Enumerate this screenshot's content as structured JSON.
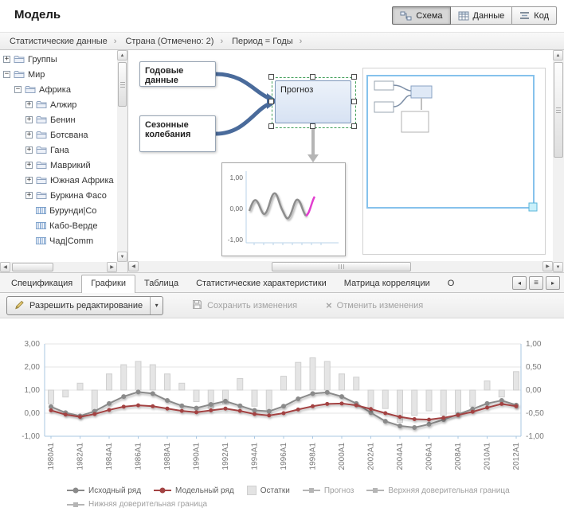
{
  "header": {
    "title": "Модель",
    "views": [
      {
        "label": "Схема",
        "active": true
      },
      {
        "label": "Данные",
        "active": false
      },
      {
        "label": "Код",
        "active": false
      }
    ]
  },
  "breadcrumb": {
    "items": [
      "Статистические данные",
      "Страна (Отмечено: 2)",
      "Период = Годы"
    ]
  },
  "icons": {
    "chevron_right": "›",
    "dropdown_arrow": "▾",
    "scroll_up": "▲",
    "scroll_down": "▼",
    "scroll_left": "◀",
    "scroll_right": "▶",
    "nav_left": "◂",
    "nav_right": "▸",
    "nav_menu": "≡",
    "expand": "+",
    "collapse": "−",
    "cancel_x": "×"
  },
  "tree": {
    "items": [
      {
        "label": "Группы",
        "depth": 0,
        "icon": "folder",
        "toggle": "+"
      },
      {
        "label": "Мир",
        "depth": 0,
        "icon": "folder",
        "toggle": "-"
      },
      {
        "label": "Африка",
        "depth": 1,
        "icon": "folder",
        "toggle": "-"
      },
      {
        "label": "Алжир",
        "depth": 2,
        "icon": "folder",
        "toggle": "+"
      },
      {
        "label": "Бенин",
        "depth": 2,
        "icon": "folder",
        "toggle": "+"
      },
      {
        "label": "Ботсвана",
        "depth": 2,
        "icon": "folder",
        "toggle": "+"
      },
      {
        "label": "Гана",
        "depth": 2,
        "icon": "folder",
        "toggle": "+"
      },
      {
        "label": "Маврикий",
        "depth": 2,
        "icon": "folder",
        "toggle": "+"
      },
      {
        "label": "Южная Африка",
        "depth": 2,
        "icon": "folder",
        "toggle": "+"
      },
      {
        "label": "Буркина Фасо",
        "depth": 2,
        "icon": "folder",
        "toggle": "+"
      },
      {
        "label": "Бурунди|Co",
        "depth": 2,
        "icon": "series",
        "toggle": null
      },
      {
        "label": "Кабо-Верде",
        "depth": 2,
        "icon": "series",
        "toggle": null
      },
      {
        "label": "Чад|Comm",
        "depth": 2,
        "icon": "series",
        "toggle": null
      }
    ]
  },
  "diagram": {
    "nodes": [
      {
        "label": "Годовые данные"
      },
      {
        "label": "Сезонные колебания"
      },
      {
        "label": "Прогноз",
        "selected": true
      }
    ],
    "thumbnail": {
      "ylabels": [
        "1,00",
        "0,00",
        "-1,00"
      ]
    }
  },
  "tabs": {
    "items": [
      {
        "label": "Спецификация",
        "active": false
      },
      {
        "label": "Графики",
        "active": true
      },
      {
        "label": "Таблица",
        "active": false
      },
      {
        "label": "Статистические характеристики",
        "active": false
      },
      {
        "label": "Матрица корреляции",
        "active": false
      },
      {
        "label": "О",
        "active": false
      }
    ]
  },
  "toolbar": {
    "edit_label": "Разрешить редактирование",
    "save_label": "Сохранить изменения",
    "cancel_label": "Отменить изменения"
  },
  "chart_data": {
    "type": "line+bar",
    "grid": true,
    "legend_position": "bottom",
    "x": [
      "1980A1",
      "1981A1",
      "1982A1",
      "1983A1",
      "1984A1",
      "1985A1",
      "1986A1",
      "1987A1",
      "1988A1",
      "1989A1",
      "1990A1",
      "1991A1",
      "1992A1",
      "1993A1",
      "1994A1",
      "1995A1",
      "1996A1",
      "1997A1",
      "1998A1",
      "1999A1",
      "2000A1",
      "2001A1",
      "2002A1",
      "2003A1",
      "2004A1",
      "2005A1",
      "2006A1",
      "2007A1",
      "2008A1",
      "2009A1",
      "2010A1",
      "2011A1",
      "2012A1"
    ],
    "x_tick_labels": [
      "1980A1",
      "1982A1",
      "1984A1",
      "1986A1",
      "1988A1",
      "1990A1",
      "1992A1",
      "1994A1",
      "1996A1",
      "1998A1",
      "2000A1",
      "2002A1",
      "2004A1",
      "2006A1",
      "2008A1",
      "2010A1",
      "2012A1"
    ],
    "left_axis": {
      "min": -1,
      "max": 3,
      "ticks": [
        "3,00",
        "2,00",
        "1,00",
        "0,00",
        "-1,00"
      ]
    },
    "right_axis": {
      "min": -1,
      "max": 1,
      "ticks": [
        "1,00",
        "0,50",
        "0,00",
        "-0,50",
        "-1,00"
      ]
    },
    "series": [
      {
        "name": "Исходный ряд",
        "type": "line",
        "axis": "left",
        "marker": "circle",
        "color": "#8a8a8a",
        "dim": false,
        "values": [
          0.28,
          0.02,
          -0.12,
          0.08,
          0.42,
          0.72,
          0.92,
          0.85,
          0.55,
          0.32,
          0.22,
          0.38,
          0.52,
          0.32,
          0.12,
          0.08,
          0.3,
          0.62,
          0.85,
          0.9,
          0.72,
          0.42,
          0.02,
          -0.35,
          -0.55,
          -0.62,
          -0.48,
          -0.28,
          -0.05,
          0.18,
          0.42,
          0.55,
          0.35
        ]
      },
      {
        "name": "Модельный ряд",
        "type": "line",
        "axis": "left",
        "marker": "circle",
        "color": "#a34343",
        "dim": false,
        "values": [
          0.12,
          -0.06,
          -0.16,
          -0.04,
          0.14,
          0.28,
          0.34,
          0.3,
          0.2,
          0.1,
          0.04,
          0.12,
          0.2,
          0.1,
          -0.04,
          -0.1,
          0.0,
          0.16,
          0.3,
          0.4,
          0.42,
          0.34,
          0.18,
          0.0,
          -0.16,
          -0.26,
          -0.28,
          -0.2,
          -0.08,
          0.06,
          0.24,
          0.4,
          0.3
        ]
      },
      {
        "name": "Остатки",
        "type": "bar",
        "axis": "right",
        "marker": "bar",
        "color": "#e5e5e5",
        "dim": false,
        "values": [
          -0.3,
          -0.15,
          0.15,
          -0.45,
          0.35,
          0.55,
          0.62,
          0.55,
          0.35,
          0.15,
          -0.25,
          -0.4,
          -0.3,
          0.25,
          -0.35,
          -0.45,
          0.3,
          0.6,
          0.7,
          0.62,
          0.35,
          0.28,
          -0.45,
          -0.4,
          -0.7,
          -0.55,
          -0.45,
          -0.55,
          -0.5,
          -0.35,
          0.2,
          -0.15,
          0.4
        ]
      },
      {
        "name": "Прогноз",
        "type": "line",
        "axis": "left",
        "marker": "square",
        "color": "#b5b5b5",
        "dim": true,
        "values": []
      },
      {
        "name": "Верхняя доверительная граница",
        "type": "line",
        "axis": "left",
        "marker": "square",
        "color": "#b5b5b5",
        "dim": true,
        "values": []
      },
      {
        "name": "Нижняя доверительная граница",
        "type": "line",
        "axis": "left",
        "marker": "square",
        "color": "#b5b5b5",
        "dim": true,
        "values": []
      }
    ]
  }
}
